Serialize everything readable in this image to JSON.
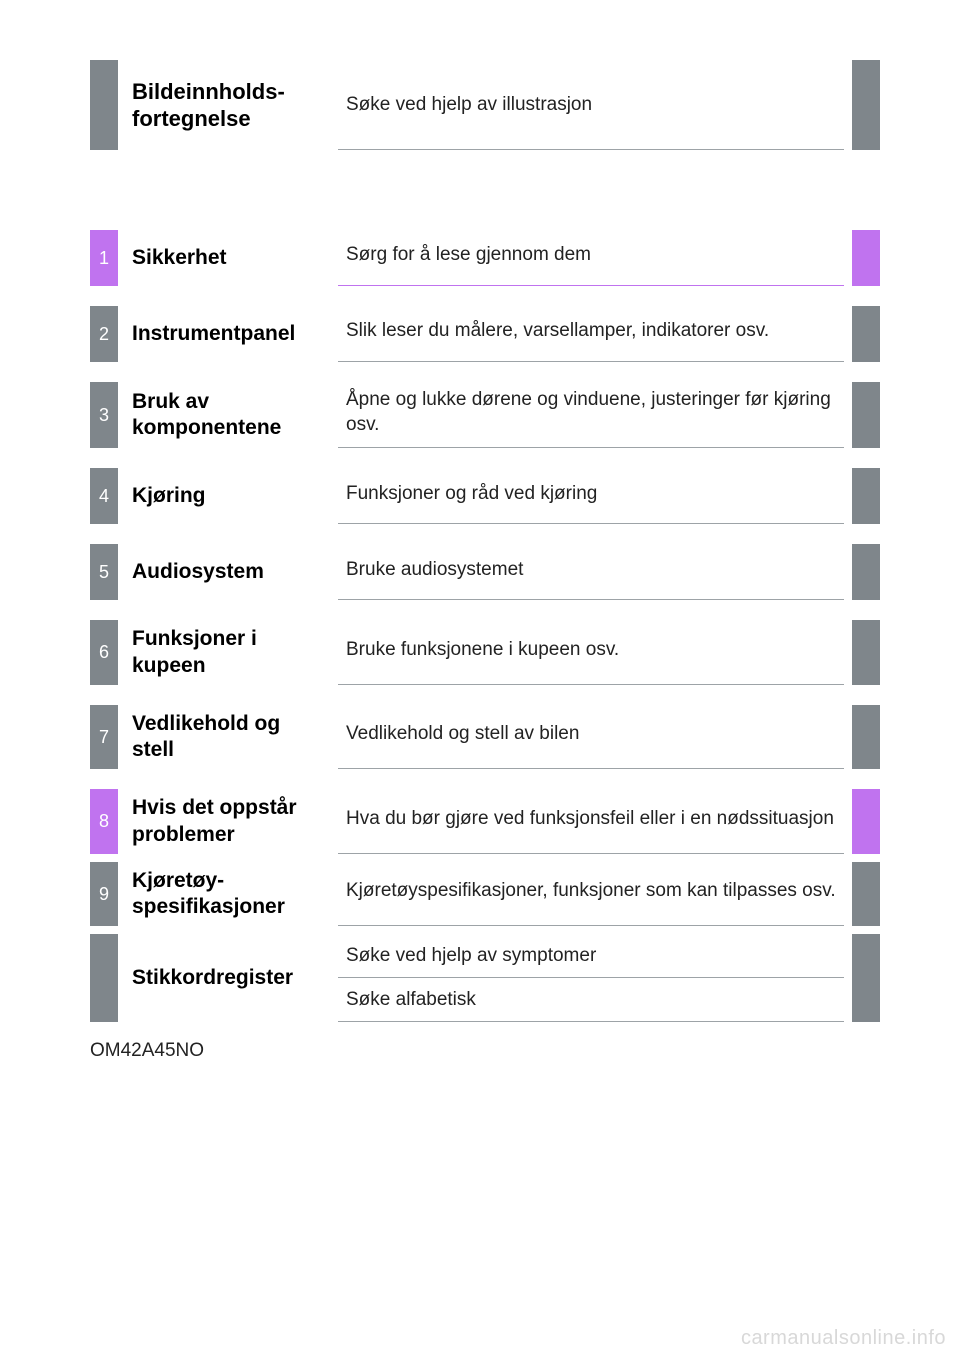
{
  "colors": {
    "gray": "#7f868b",
    "pink": "#c073ef",
    "text": "#222222",
    "border_gray": "#9da3a7",
    "background": "#ffffff",
    "watermark": "#d8d8d8"
  },
  "typography": {
    "family": "Arial",
    "title_size_pt": 16,
    "body_size_pt": 14
  },
  "header": {
    "title": "Bildeinnholds-fortegnelse",
    "description": "Søke ved hjelp av illustrasjon"
  },
  "sections": [
    {
      "num": "1",
      "color": "pink",
      "border": "pink",
      "title": "Sikkerhet",
      "description": "Sørg for å lese gjennom dem"
    },
    {
      "num": "2",
      "color": "gray",
      "border": "gray",
      "title": "Instrumentpanel",
      "description": "Slik leser du målere, varsellamper, indikatorer osv."
    },
    {
      "num": "3",
      "color": "gray",
      "border": "gray",
      "title": "Bruk av komponentene",
      "description": "Åpne og lukke dørene og vinduene, justeringer før kjøring osv."
    },
    {
      "num": "4",
      "color": "gray",
      "border": "gray",
      "title": "Kjøring",
      "description": "Funksjoner og råd ved kjøring"
    },
    {
      "num": "5",
      "color": "gray",
      "border": "gray",
      "title": "Audiosystem",
      "description": "Bruke audiosystemet"
    },
    {
      "num": "6",
      "color": "gray",
      "border": "gray",
      "title": "Funksjoner i kupeen",
      "description": "Bruke funksjonene i kupeen osv."
    },
    {
      "num": "7",
      "color": "gray",
      "border": "gray",
      "title": "Vedlikehold og stell",
      "description": "Vedlikehold og stell av bilen"
    },
    {
      "num": "8",
      "color": "pink",
      "border": "gray",
      "title": "Hvis det oppstår problemer",
      "description": "Hva du bør gjøre ved funksjonsfeil eller i en nødssituasjon"
    },
    {
      "num": "9",
      "color": "gray",
      "border": "gray",
      "title": "Kjøretøy-spesifikasjoner",
      "description": "Kjøretøyspesifikasjoner, funksjoner som kan tilpasses osv."
    }
  ],
  "index": {
    "title": "Stikkordregister",
    "lines": [
      "Søke ved hjelp av symptomer",
      "Søke alfabetisk"
    ]
  },
  "footer_code": "OM42A45NO",
  "watermark": "carmanualsonline.info"
}
